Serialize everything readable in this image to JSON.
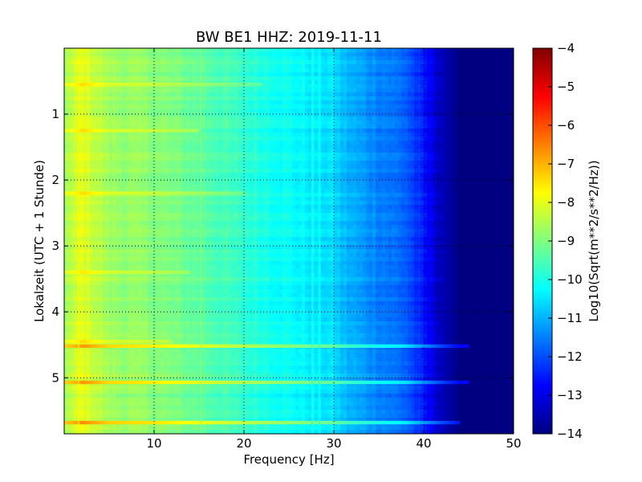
{
  "chart_data": {
    "type": "heatmap",
    "title": "BW BE1 HHZ: 2019-11-11",
    "xlabel": "Frequency [Hz]",
    "ylabel": "Lokalzeit (UTC + 1 Stunde)",
    "xlim": [
      0,
      50
    ],
    "ylim": [
      0,
      5.85
    ],
    "y_inverted": true,
    "x_ticks": [
      10,
      20,
      30,
      40,
      50
    ],
    "y_ticks": [
      1,
      2,
      3,
      4,
      5
    ],
    "grid": true,
    "colorbar": {
      "label": "Log10(Sqrt(m**2/s**2/Hz))",
      "min": -14,
      "max": -4,
      "ticks": [
        -4,
        -5,
        -6,
        -7,
        -8,
        -9,
        -10,
        -11,
        -12,
        -13,
        -14
      ],
      "colormap": "jet"
    },
    "z_profile_by_frequency": {
      "frequency": [
        0,
        1,
        2,
        5,
        10,
        15,
        20,
        25,
        30,
        31,
        33,
        38,
        40,
        42,
        44,
        46,
        50
      ],
      "log10_amplitude": [
        -8.6,
        -8.4,
        -8.0,
        -8.7,
        -8.9,
        -9.3,
        -9.8,
        -10.2,
        -10.6,
        -10.9,
        -11.2,
        -11.8,
        -12.6,
        -13.4,
        -14.0,
        -14.0,
        -14.0
      ]
    },
    "notable_bands": [
      {
        "time": 4.52,
        "fmax": 45,
        "delta": 1.3
      },
      {
        "time": 5.07,
        "fmax": 45,
        "delta": 1.3
      },
      {
        "time": 5.68,
        "fmax": 44,
        "delta": 1.4
      },
      {
        "time": 0.55,
        "fmax": 22,
        "delta": 0.6
      },
      {
        "time": 1.25,
        "fmax": 15,
        "delta": 0.6
      },
      {
        "time": 2.2,
        "fmax": 20,
        "delta": 0.6
      },
      {
        "time": 3.4,
        "fmax": 14,
        "delta": 0.5
      },
      {
        "time": 4.45,
        "fmax": 12,
        "delta": 0.6
      }
    ],
    "notable_lines": [
      {
        "frequency": 15.2,
        "delta": 0.5
      },
      {
        "frequency": 27.6,
        "delta": 0.5
      },
      {
        "frequency": 28.4,
        "delta": 0.4
      },
      {
        "frequency": 1.6,
        "delta": 0.4
      }
    ]
  }
}
